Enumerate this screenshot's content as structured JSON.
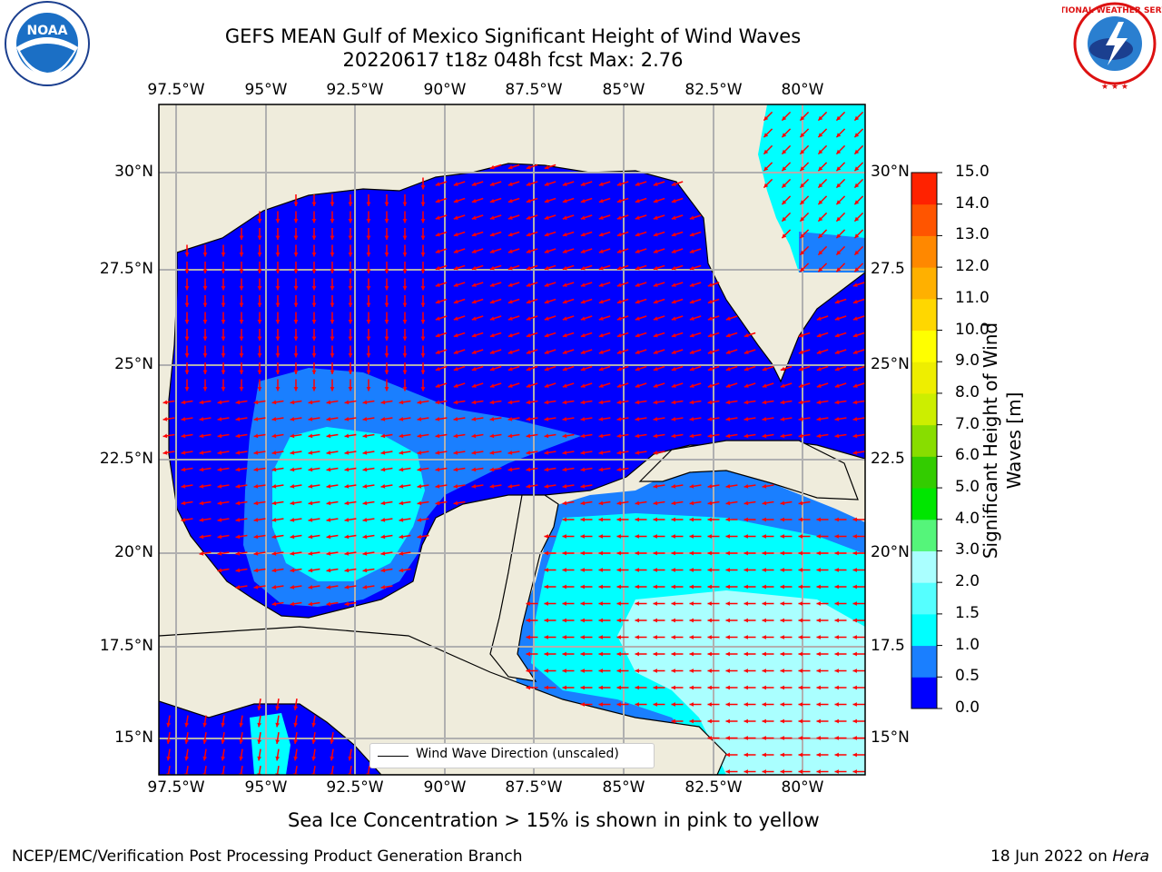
{
  "header": {
    "title_line1": "GEFS MEAN Gulf of Mexico Significant Height of Wind Waves",
    "title_line2": "20220617 t18z 048h fcst   Max: 2.76"
  },
  "map": {
    "lon_labels": [
      "97.5°W",
      "95°W",
      "92.5°W",
      "90°W",
      "87.5°W",
      "85°W",
      "82.5°W",
      "80°W"
    ],
    "lat_labels_left": [
      "30°N",
      "27.5°N",
      "25°N",
      "22.5°N",
      "20°N",
      "17.5°N",
      "15°N"
    ],
    "lat_labels_right": [
      "30°N",
      "27.5",
      "25°N",
      "22.5",
      "20°N",
      "17.5",
      "15°N"
    ],
    "colors": {
      "land": "#efecdc",
      "ocean_low": "#0000ff",
      "ocean_mid": "#1a7fff",
      "ocean_high": "#00ffff",
      "ocean_higher": "#88ffff",
      "arrows": "#ff0000",
      "grid": "#b0b0b0"
    },
    "legend_label": "Wind Wave Direction (unscaled)"
  },
  "colorbar": {
    "ticks": [
      "15.0",
      "14.0",
      "13.0",
      "12.0",
      "11.0",
      "10.0",
      "9.0",
      "8.0",
      "7.0",
      "6.0",
      "5.0",
      "4.0",
      "3.0",
      "2.0",
      "1.5",
      "1.0",
      "0.5",
      "0.0"
    ],
    "label_line1": "Significant Height of Wind",
    "label_line2": "Waves [m]",
    "colors": [
      "#0000ff",
      "#1a7fff",
      "#00ffff",
      "#55ffff",
      "#aaffff",
      "#55f57a",
      "#00e600",
      "#33cc00",
      "#88dd00",
      "#ccee00",
      "#eeee00",
      "#ffff00",
      "#ffd700",
      "#ffb000",
      "#ff8800",
      "#ff5500",
      "#ff2200"
    ]
  },
  "notes": {
    "sea_ice": "Sea Ice Concentration > 15% is shown in pink to yellow"
  },
  "footer": {
    "left": "NCEP/EMC/Verification Post Processing Product Generation Branch",
    "right_date": "18 Jun 2022 on ",
    "right_system": "Hera"
  },
  "logos": {
    "noaa_text": "NOAA",
    "nws_text": "NATIONAL WEATHER SERVICE"
  }
}
